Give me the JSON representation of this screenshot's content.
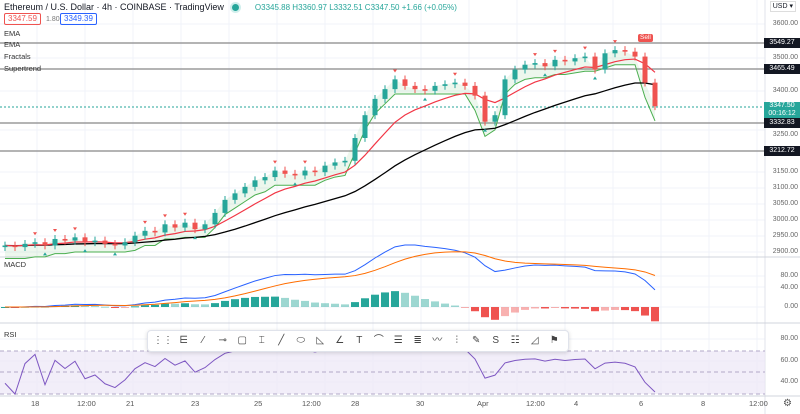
{
  "header": {
    "title": "Ethereum / U.S. Dollar · 4h · COINBASE · TradingView",
    "ohlc": "O3345.88 H3360.97 L3332.51 C3347.50 +1.66 (+0.05%)",
    "bid": "3347.59",
    "spread": "1.80",
    "ask": "3349.39"
  },
  "indicators": [
    "EMA",
    "EMA",
    "Fractals",
    "Supertrend"
  ],
  "currency": "USD ▾",
  "price_axis": [
    "3600.00",
    "3500.00",
    "3400.00",
    "3250.00",
    "3150.00",
    "3100.00",
    "3050.00",
    "3000.00",
    "2950.00",
    "2900.00"
  ],
  "price_tags": {
    "level1": "3549.27",
    "level2": "3465.49",
    "current": "3347.50",
    "countdown": "00:16:12",
    "level3": "3332.83",
    "level4": "3212.72"
  },
  "sell_label": "Sell",
  "macd": {
    "label": "MACD",
    "axis": [
      "80.00",
      "40.00",
      "0.00"
    ]
  },
  "rsi": {
    "label": "RSI",
    "axis": [
      "80.00",
      "60.00",
      "40.00"
    ]
  },
  "time_axis": [
    "18",
    "12:00",
    "21",
    "23",
    "25",
    "12:00",
    "28",
    "30",
    "Apr",
    "12:00",
    "4",
    "6",
    "8",
    "12:00"
  ],
  "toolbar_icons": [
    "grip-icon",
    "pitchfork-icon",
    "trend-angle-icon",
    "horizontal-ray-icon",
    "rectangle-icon",
    "date-range-icon",
    "trendline-icon",
    "ellipse-icon",
    "triangle-icon",
    "path-icon",
    "text-icon",
    "arc-icon",
    "long-position-icon",
    "fib-icon",
    "polyline-icon",
    "bars-pattern-icon",
    "brush-icon",
    "curve-icon",
    "price-range-icon",
    "angle-icon",
    "flag-icon"
  ],
  "toolbar_glyphs": [
    "⋮⋮",
    "⋿",
    "⁄",
    "⊸",
    "▢",
    "⌶",
    "╱",
    "⬭",
    "◺",
    "∠",
    "T",
    "⌒",
    "☰",
    "≣",
    "〰",
    "⫶",
    "✎",
    "S",
    "☷",
    "◿",
    "⚑"
  ],
  "colors": {
    "up": "#26a69a",
    "down": "#ef5350",
    "ema_fast": "#f23645",
    "ema_slow": "#000000",
    "supertrend": "#4caf50",
    "macd": "#2962ff",
    "signal": "#ff6d00",
    "rsi": "#7e57c2"
  },
  "chart_data": {
    "type": "candlestick",
    "timeframe": "4h",
    "closes": [
      2920,
      2915,
      2925,
      2930,
      2920,
      2940,
      2935,
      2945,
      2930,
      2935,
      2925,
      2920,
      2930,
      2950,
      2965,
      2960,
      2985,
      2975,
      2990,
      2970,
      2985,
      3020,
      3060,
      3080,
      3100,
      3120,
      3130,
      3150,
      3140,
      3135,
      3150,
      3145,
      3165,
      3175,
      3180,
      3250,
      3320,
      3370,
      3400,
      3430,
      3410,
      3400,
      3395,
      3410,
      3415,
      3420,
      3410,
      3380,
      3300,
      3320,
      3430,
      3460,
      3475,
      3480,
      3470,
      3490,
      3485,
      3495,
      3500,
      3460,
      3510,
      3520,
      3515,
      3500,
      3420,
      3347.5
    ],
    "ylim": [
      2900,
      3600
    ]
  }
}
